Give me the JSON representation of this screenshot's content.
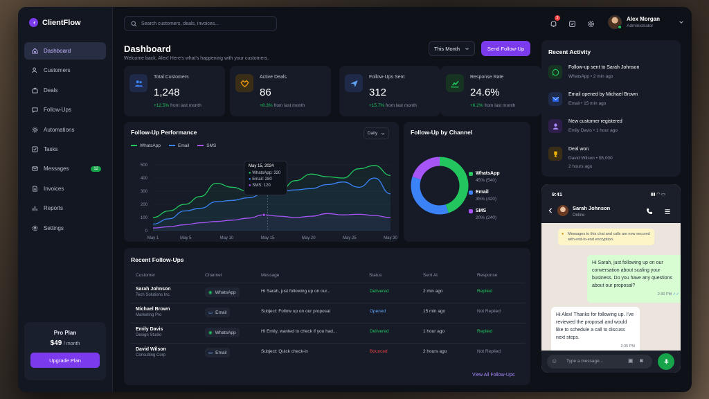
{
  "brand": {
    "name": "ClientFlow"
  },
  "sidebar": {
    "items": [
      {
        "label": "Dashboard"
      },
      {
        "label": "Customers"
      },
      {
        "label": "Deals"
      },
      {
        "label": "Follow-Ups"
      },
      {
        "label": "Automations"
      },
      {
        "label": "Tasks"
      },
      {
        "label": "Messages",
        "badge": "12"
      },
      {
        "label": "Invoices"
      },
      {
        "label": "Reports"
      },
      {
        "label": "Settings"
      }
    ],
    "plan": {
      "name": "Pro Plan",
      "price": "$49",
      "period": "/ month",
      "button": "Upgrade Plan"
    }
  },
  "topbar": {
    "search_placeholder": "Search customers, deals, invoices...",
    "notifications_count": "3",
    "user_name": "Alex Morgan",
    "user_role": "Administrator"
  },
  "header": {
    "title": "Dashboard",
    "subtitle": "Welcome back, Alex! Here's what's happening with your customers.",
    "period": "This Month",
    "action": "Send Follow-Up"
  },
  "stats": [
    {
      "label": "Total Customers",
      "value": "1,248",
      "delta": "+12.5%",
      "delta_suffix": "from last month",
      "color": "#3b82f6"
    },
    {
      "label": "Active Deals",
      "value": "86",
      "delta": "+8.3%",
      "delta_suffix": "from last month",
      "color": "#f59e0b"
    },
    {
      "label": "Follow-Ups Sent",
      "value": "312",
      "delta": "+15.7%",
      "delta_suffix": "from last month",
      "color": "#60a5fa"
    },
    {
      "label": "Response Rate",
      "value": "24.6%",
      "delta": "+6.2%",
      "delta_suffix": "from last month",
      "color": "#22c55e"
    }
  ],
  "performance": {
    "title": "Follow-Up Performance",
    "range": "Daily",
    "tooltip": {
      "date": "May 15, 2024",
      "rows": [
        {
          "label": "WhatsApp:",
          "value": "320"
        },
        {
          "label": "Email:",
          "value": "280"
        },
        {
          "label": "SMS:",
          "value": "120"
        }
      ]
    }
  },
  "chart_data": [
    {
      "type": "line",
      "title": "Follow-Up Performance",
      "x": [
        "May 1",
        "May 3",
        "May 5",
        "May 7",
        "May 9",
        "May 11",
        "May 13",
        "May 15",
        "May 17",
        "May 19",
        "May 21",
        "May 23",
        "May 25",
        "May 27",
        "May 29",
        "May 30"
      ],
      "xticks": [
        "May 1",
        "May 5",
        "May 10",
        "May 15",
        "May 20",
        "May 25",
        "May 30"
      ],
      "yticks": [
        0,
        100,
        200,
        300,
        400,
        500
      ],
      "ylim": [
        0,
        500
      ],
      "series": [
        {
          "name": "WhatsApp",
          "color": "#22c55e",
          "values": [
            100,
            150,
            200,
            260,
            360,
            330,
            300,
            320,
            300,
            380,
            430,
            410,
            400,
            470,
            495,
            420
          ]
        },
        {
          "name": "Email",
          "color": "#3b82f6",
          "values": [
            50,
            90,
            150,
            170,
            220,
            230,
            250,
            280,
            300,
            310,
            320,
            350,
            370,
            330,
            400,
            280
          ]
        },
        {
          "name": "SMS",
          "color": "#a855f7",
          "values": [
            20,
            30,
            45,
            60,
            70,
            80,
            95,
            120,
            110,
            100,
            110,
            130,
            120,
            125,
            115,
            100
          ]
        }
      ],
      "grid": true,
      "legend": "top-left"
    },
    {
      "type": "pie",
      "title": "Follow-Up by Channel",
      "categories": [
        "WhatsApp",
        "Email",
        "SMS"
      ],
      "values": [
        540,
        420,
        240
      ],
      "percent_labels": [
        "45% (540)",
        "35% (420)",
        "20% (240)"
      ],
      "colors": [
        "#22c55e",
        "#3b82f6",
        "#a855f7"
      ],
      "donut": true
    }
  ],
  "table": {
    "title": "Recent Follow-Ups",
    "columns": [
      "Customer",
      "Channel",
      "Message",
      "Status",
      "Sent At",
      "Response"
    ],
    "rows": [
      {
        "name": "Sarah Johnson",
        "company": "Tech Solutions Inc.",
        "channel": "WhatsApp",
        "message": "Hi Sarah, just following up on our...",
        "status": "Delivered",
        "sent": "2 min ago",
        "response": "Replied"
      },
      {
        "name": "Michael Brown",
        "company": "Marketing Pro",
        "channel": "Email",
        "message": "Subject: Follow up on our proposal",
        "status": "Opened",
        "sent": "15 min ago",
        "response": "Not Replied"
      },
      {
        "name": "Emily Davis",
        "company": "Design Studio",
        "channel": "WhatsApp",
        "message": "Hi Emily, wanted to check if you had...",
        "status": "Delivered",
        "sent": "1 hour ago",
        "response": "Replied"
      },
      {
        "name": "David Wilson",
        "company": "Consulting Corp",
        "channel": "Email",
        "message": "Subject: Quick check-in",
        "status": "Bounced",
        "sent": "2 hours ago",
        "response": "Not Replied"
      }
    ],
    "view_all": "View All Follow-Ups",
    "status_colors": {
      "Delivered": "#22c55e",
      "Opened": "#60a5fa",
      "Bounced": "#ef4444",
      "Replied": "#22c55e",
      "Not Replied": "#8a92a6"
    }
  },
  "activity": {
    "title": "Recent Activity",
    "items": [
      {
        "title": "Follow-up sent to Sarah Johnson",
        "sub": "WhatsApp • 2 min ago",
        "color": "#16a34a",
        "icon": "whatsapp-icon"
      },
      {
        "title": "Email opened by Michael Brown",
        "sub": "Email • 15 min ago",
        "color": "#2563eb",
        "icon": "mail-icon"
      },
      {
        "title": "New customer registered",
        "sub": "Emily Davis • 1 hour ago",
        "color": "#7c3aed",
        "icon": "user-icon"
      },
      {
        "title": "Deal won",
        "sub": "David Wilson • $5,000",
        "sub2": "2 hours ago",
        "color": "#ca8a04",
        "icon": "trophy-icon"
      }
    ]
  },
  "chat": {
    "time": "9:41",
    "contact": "Sarah Johnson",
    "status": "Online",
    "notice": "Messages to this chat and calls are now secured with end-to-end encryption.",
    "messages": [
      {
        "text": "Hi Sarah, just following up on our conversation about scaling your business. Do you have any questions about our proposal?",
        "time": "2:30 PM",
        "outgoing": true
      },
      {
        "text": "Hi Alex! Thanks for following up. I've reviewed the proposal and would like to schedule a call to discuss next steps.",
        "time": "2:35 PM",
        "outgoing": false
      }
    ],
    "input_placeholder": "Type a message..."
  }
}
